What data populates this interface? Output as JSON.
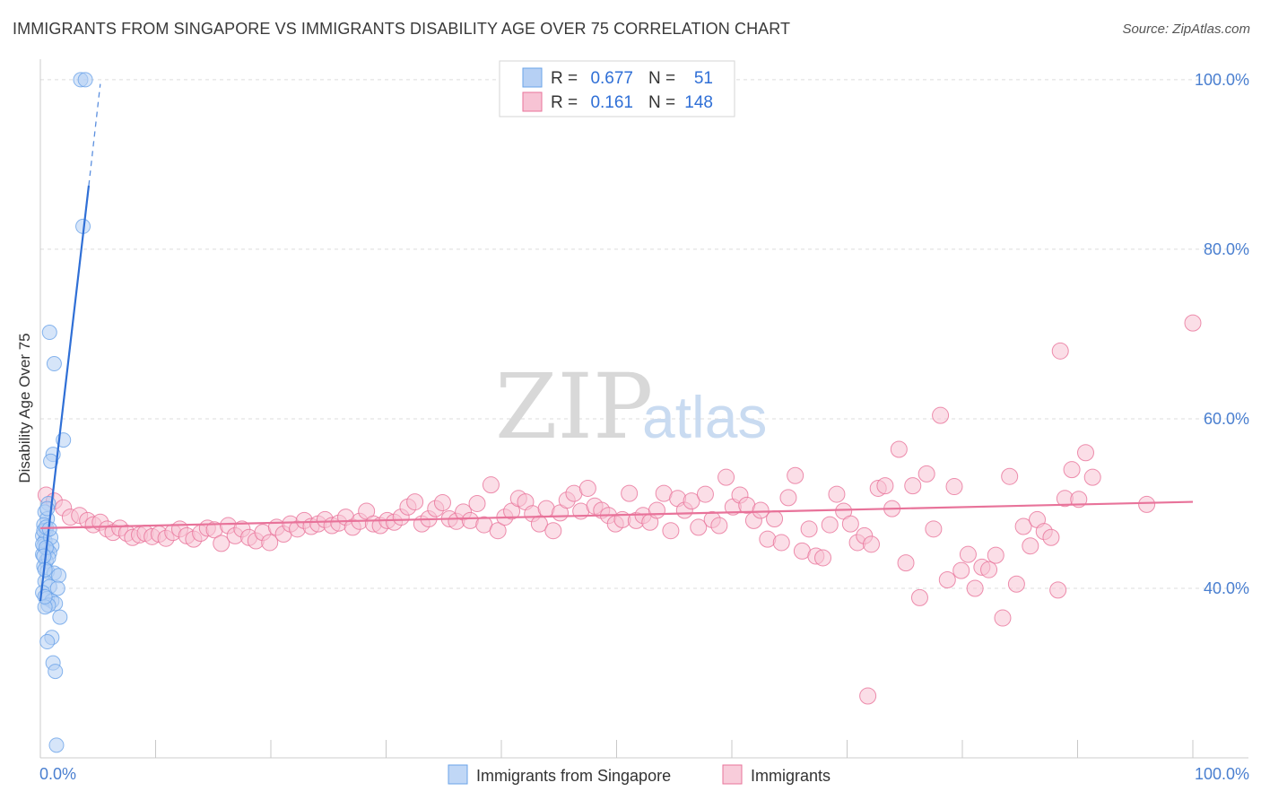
{
  "header": {
    "title": "IMMIGRANTS FROM SINGAPORE VS IMMIGRANTS DISABILITY AGE OVER 75 CORRELATION CHART",
    "source": "Source: ZipAtlas.com"
  },
  "watermark": {
    "zip": "ZIP",
    "atlas": "atlas"
  },
  "legend_top": {
    "r_label": "R =",
    "n_label": "N =",
    "rows": [
      {
        "r": "0.677",
        "n": "51",
        "color": "#a9c8f2"
      },
      {
        "r": "0.161",
        "n": "148",
        "color": "#f6b9cc"
      }
    ]
  },
  "chart_data": {
    "type": "scatter",
    "title": "IMMIGRANTS FROM SINGAPORE VS IMMIGRANTS DISABILITY AGE OVER 75 CORRELATION CHART",
    "xlabel": "",
    "ylabel": "Disability Age Over 75",
    "xlim": [
      0,
      100
    ],
    "ylim": [
      20,
      102
    ],
    "x_tick_labels": [
      "0.0%",
      "100.0%"
    ],
    "y_ticks": [
      40,
      60,
      80,
      100
    ],
    "y_tick_labels": [
      "40.0%",
      "60.0%",
      "80.0%",
      "100.0%"
    ],
    "grid": true,
    "legend_placement": "bottom",
    "series": [
      {
        "name": "Immigrants from Singapore",
        "color": "#6aa3e8",
        "fill": "#b5d0f4",
        "stats": {
          "R": 0.677,
          "N": 51
        },
        "trend": {
          "x0": 0.0,
          "y0": 38.5,
          "x1": 4.2,
          "y1": 87.5,
          "dash_to_x": 5.2,
          "dash_to_y": 99.5
        },
        "points": [
          [
            3.5,
            100
          ],
          [
            3.9,
            100
          ],
          [
            3.7,
            82.7
          ],
          [
            1.2,
            66.5
          ],
          [
            0.8,
            70.2
          ],
          [
            2.0,
            57.5
          ],
          [
            1.1,
            55.8
          ],
          [
            0.9,
            55.0
          ],
          [
            0.7,
            50.0
          ],
          [
            0.4,
            49.0
          ],
          [
            0.6,
            48.2
          ],
          [
            0.3,
            47.5
          ],
          [
            0.5,
            46.8
          ],
          [
            0.2,
            46.2
          ],
          [
            0.4,
            45.6
          ],
          [
            0.3,
            45.0
          ],
          [
            0.6,
            44.6
          ],
          [
            1.0,
            45.0
          ],
          [
            0.8,
            44.2
          ],
          [
            0.2,
            44.0
          ],
          [
            0.5,
            43.2
          ],
          [
            0.3,
            42.6
          ],
          [
            0.6,
            42.0
          ],
          [
            1.2,
            41.8
          ],
          [
            1.6,
            41.5
          ],
          [
            0.4,
            40.8
          ],
          [
            0.8,
            40.2
          ],
          [
            1.5,
            40.0
          ],
          [
            0.2,
            39.5
          ],
          [
            0.6,
            38.8
          ],
          [
            1.0,
            38.5
          ],
          [
            1.3,
            38.2
          ],
          [
            0.7,
            38.0
          ],
          [
            0.4,
            37.8
          ],
          [
            1.7,
            36.6
          ],
          [
            1.0,
            34.2
          ],
          [
            0.6,
            33.7
          ],
          [
            1.1,
            31.2
          ],
          [
            1.3,
            30.2
          ],
          [
            1.4,
            21.5
          ],
          [
            0.3,
            46.8
          ],
          [
            0.5,
            47.2
          ],
          [
            0.2,
            45.2
          ],
          [
            0.7,
            43.6
          ],
          [
            0.4,
            42.2
          ],
          [
            0.9,
            46.0
          ],
          [
            0.5,
            44.8
          ],
          [
            0.3,
            43.8
          ],
          [
            0.8,
            47.0
          ],
          [
            0.6,
            49.4
          ],
          [
            0.4,
            39.0
          ]
        ]
      },
      {
        "name": "Immigrants",
        "color": "#e8739a",
        "fill": "#f7c3d3",
        "stats": {
          "R": 0.161,
          "N": 148
        },
        "trend": {
          "x0": 0.0,
          "y0": 47.1,
          "x1": 100.0,
          "y1": 50.2
        },
        "points": [
          [
            0.5,
            51.0
          ],
          [
            1.2,
            50.3
          ],
          [
            2.0,
            49.5
          ],
          [
            2.6,
            48.4
          ],
          [
            3.4,
            48.6
          ],
          [
            4.1,
            48.0
          ],
          [
            4.6,
            47.5
          ],
          [
            5.2,
            47.8
          ],
          [
            5.8,
            47.0
          ],
          [
            6.3,
            46.6
          ],
          [
            6.9,
            47.1
          ],
          [
            7.5,
            46.5
          ],
          [
            8.0,
            46.0
          ],
          [
            8.6,
            46.3
          ],
          [
            9.1,
            46.5
          ],
          [
            9.7,
            46.1
          ],
          [
            10.3,
            46.4
          ],
          [
            10.9,
            45.9
          ],
          [
            11.5,
            46.6
          ],
          [
            12.1,
            47.0
          ],
          [
            12.7,
            46.2
          ],
          [
            13.3,
            45.8
          ],
          [
            13.9,
            46.5
          ],
          [
            14.5,
            47.1
          ],
          [
            15.1,
            46.9
          ],
          [
            15.7,
            45.3
          ],
          [
            16.3,
            47.4
          ],
          [
            16.9,
            46.2
          ],
          [
            17.5,
            47.0
          ],
          [
            18.1,
            46.0
          ],
          [
            18.7,
            45.6
          ],
          [
            19.3,
            46.6
          ],
          [
            19.9,
            45.4
          ],
          [
            20.5,
            47.2
          ],
          [
            21.1,
            46.4
          ],
          [
            21.7,
            47.6
          ],
          [
            22.3,
            47.0
          ],
          [
            22.9,
            48.0
          ],
          [
            23.5,
            47.3
          ],
          [
            24.1,
            47.6
          ],
          [
            24.7,
            48.1
          ],
          [
            25.3,
            47.4
          ],
          [
            25.9,
            47.7
          ],
          [
            26.5,
            48.4
          ],
          [
            27.1,
            47.2
          ],
          [
            27.7,
            47.9
          ],
          [
            28.3,
            49.1
          ],
          [
            28.9,
            47.6
          ],
          [
            29.5,
            47.4
          ],
          [
            30.1,
            48.0
          ],
          [
            30.7,
            47.8
          ],
          [
            31.3,
            48.4
          ],
          [
            31.9,
            49.6
          ],
          [
            32.5,
            50.2
          ],
          [
            33.1,
            47.6
          ],
          [
            33.7,
            48.2
          ],
          [
            34.3,
            49.4
          ],
          [
            34.9,
            50.1
          ],
          [
            35.5,
            48.2
          ],
          [
            36.1,
            47.9
          ],
          [
            36.7,
            49.0
          ],
          [
            37.3,
            48.0
          ],
          [
            37.9,
            50.0
          ],
          [
            38.5,
            47.5
          ],
          [
            39.1,
            52.2
          ],
          [
            39.7,
            46.8
          ],
          [
            40.3,
            48.4
          ],
          [
            40.9,
            49.1
          ],
          [
            41.5,
            50.6
          ],
          [
            42.1,
            50.2
          ],
          [
            42.7,
            48.8
          ],
          [
            43.3,
            47.6
          ],
          [
            43.9,
            49.4
          ],
          [
            44.5,
            46.8
          ],
          [
            45.1,
            48.9
          ],
          [
            45.7,
            50.4
          ],
          [
            46.3,
            51.2
          ],
          [
            46.9,
            49.1
          ],
          [
            47.5,
            51.8
          ],
          [
            48.1,
            49.7
          ],
          [
            48.7,
            49.2
          ],
          [
            49.3,
            48.6
          ],
          [
            49.9,
            47.6
          ],
          [
            50.5,
            48.1
          ],
          [
            51.1,
            51.2
          ],
          [
            51.7,
            48.0
          ],
          [
            52.3,
            48.6
          ],
          [
            52.9,
            47.8
          ],
          [
            53.5,
            49.2
          ],
          [
            54.1,
            51.2
          ],
          [
            54.7,
            46.8
          ],
          [
            55.3,
            50.6
          ],
          [
            55.9,
            49.2
          ],
          [
            56.5,
            50.3
          ],
          [
            57.1,
            47.2
          ],
          [
            57.7,
            51.1
          ],
          [
            58.3,
            48.1
          ],
          [
            58.9,
            47.4
          ],
          [
            59.5,
            53.1
          ],
          [
            60.1,
            49.6
          ],
          [
            60.7,
            51.0
          ],
          [
            61.3,
            49.8
          ],
          [
            61.9,
            48.0
          ],
          [
            62.5,
            49.2
          ],
          [
            63.1,
            45.8
          ],
          [
            63.7,
            48.2
          ],
          [
            64.3,
            45.4
          ],
          [
            64.9,
            50.7
          ],
          [
            65.5,
            53.3
          ],
          [
            66.1,
            44.4
          ],
          [
            66.7,
            47.0
          ],
          [
            67.3,
            43.8
          ],
          [
            67.9,
            43.6
          ],
          [
            68.5,
            47.5
          ],
          [
            69.1,
            51.1
          ],
          [
            69.7,
            49.1
          ],
          [
            70.3,
            47.6
          ],
          [
            70.9,
            45.4
          ],
          [
            71.5,
            46.2
          ],
          [
            72.1,
            45.2
          ],
          [
            72.7,
            51.8
          ],
          [
            73.3,
            52.1
          ],
          [
            73.9,
            49.4
          ],
          [
            74.5,
            56.4
          ],
          [
            75.1,
            43.0
          ],
          [
            75.7,
            52.1
          ],
          [
            76.3,
            38.9
          ],
          [
            76.9,
            53.5
          ],
          [
            77.5,
            47.0
          ],
          [
            78.1,
            60.4
          ],
          [
            78.7,
            41.0
          ],
          [
            79.3,
            52.0
          ],
          [
            79.9,
            42.1
          ],
          [
            80.5,
            44.0
          ],
          [
            81.1,
            40.0
          ],
          [
            81.7,
            42.5
          ],
          [
            82.3,
            42.2
          ],
          [
            82.9,
            43.9
          ],
          [
            83.5,
            36.5
          ],
          [
            84.1,
            53.2
          ],
          [
            84.7,
            40.5
          ],
          [
            85.3,
            47.3
          ],
          [
            85.9,
            45.0
          ],
          [
            86.5,
            48.1
          ],
          [
            87.1,
            46.7
          ],
          [
            87.7,
            46.0
          ],
          [
            88.3,
            39.8
          ],
          [
            88.9,
            50.6
          ],
          [
            89.5,
            54.0
          ],
          [
            90.1,
            50.5
          ],
          [
            90.7,
            56.0
          ],
          [
            91.3,
            53.1
          ],
          [
            71.8,
            27.3
          ],
          [
            88.5,
            68.0
          ],
          [
            96.0,
            49.9
          ],
          [
            100.0,
            71.3
          ]
        ]
      }
    ]
  },
  "axis": {
    "y_title": "Disability Age Over 75",
    "x_left": "0.0%",
    "x_right": "100.0%"
  },
  "legend_bottom": {
    "items": [
      {
        "label": "Immigrants from Singapore"
      },
      {
        "label": "Immigrants"
      }
    ]
  }
}
